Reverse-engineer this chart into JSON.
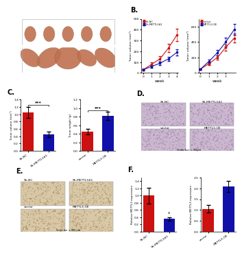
{
  "panel_B_left": {
    "x": [
      0,
      1,
      2,
      3,
      4
    ],
    "y_shNC": [
      30,
      80,
      130,
      230,
      350
    ],
    "y_shMETTL3": [
      30,
      60,
      90,
      130,
      190
    ],
    "errors_shNC": [
      8,
      15,
      25,
      40,
      55
    ],
    "errors_shMETTL3": [
      5,
      10,
      15,
      20,
      28
    ],
    "color_shNC": "#cc1111",
    "color_shMETTL3": "#1111aa",
    "label_shNC": "Sh-NC",
    "label_shMETTL3": "Sh-METTL3#1",
    "xlabel": "week",
    "ylabel": "Tumor volume (mm³)",
    "ylim": [
      0,
      500
    ]
  },
  "panel_B_right": {
    "x": [
      0,
      1,
      2,
      3,
      4
    ],
    "y_vector": [
      50,
      120,
      200,
      330,
      450
    ],
    "y_METTL3OE": [
      50,
      150,
      260,
      400,
      560
    ],
    "errors_vector": [
      8,
      18,
      28,
      40,
      55
    ],
    "errors_METTL3OE": [
      8,
      20,
      35,
      55,
      70
    ],
    "color_vector": "#cc1111",
    "color_METTL3OE": "#1111aa",
    "label_vector": "vector",
    "label_METTL3OE": "METTL3-OE",
    "xlabel": "week",
    "ylabel": "Tumor volume (mm³)",
    "ylim": [
      0,
      700
    ]
  },
  "panel_C_left": {
    "categories": [
      "Sh-NC",
      "Sh-METTL3#1"
    ],
    "values": [
      1.05,
      0.45
    ],
    "errors": [
      0.15,
      0.07
    ],
    "colors": [
      "#cc1111",
      "#1111aa"
    ],
    "ylabel": "Tumor volume (mm³)",
    "significance": "***",
    "ylim": [
      0,
      1.4
    ]
  },
  "panel_C_right": {
    "categories": [
      "vector",
      "METTL3-OE"
    ],
    "values": [
      0.45,
      0.82
    ],
    "errors": [
      0.06,
      0.09
    ],
    "colors": [
      "#cc1111",
      "#1111aa"
    ],
    "ylabel": "Tumor weight (g)",
    "significance": "***",
    "ylim": [
      0,
      1.2
    ]
  },
  "panel_D_labels_top": [
    "Sh-NC",
    "Sh-METTL3#1"
  ],
  "panel_D_labels_bottom": [
    "vector",
    "METTL3-OE"
  ],
  "panel_D_scale": "Scale bar = 40μm",
  "panel_E_labels_top_left": "Sh-NC",
  "panel_E_labels_top_right": "Sh-METTL3#1",
  "panel_E_labels_bottom_left": "vector",
  "panel_E_labels_bottom_right": "METTL3-OE",
  "panel_E_scale": "Scale bar = 400 μm",
  "panel_F_left": {
    "categories": [
      "Sh-NC",
      "Sh-METTL3#1"
    ],
    "values": [
      1.0,
      0.35
    ],
    "errors": [
      0.22,
      0.05
    ],
    "colors": [
      "#cc1111",
      "#1111aa"
    ],
    "ylabel": "Relative METTL3 expression",
    "significance": "*",
    "ylim": [
      0,
      1.5
    ]
  },
  "panel_F_right": {
    "categories": [
      "vector",
      "METTL3-OE"
    ],
    "values": [
      1.05,
      2.1
    ],
    "errors": [
      0.18,
      0.25
    ],
    "colors": [
      "#cc1111",
      "#1111aa"
    ],
    "ylabel": "Relative METTL3 expression",
    "significance": "",
    "ylim": [
      0,
      2.5
    ]
  },
  "bg_color": "#ffffff",
  "tumor_color_top": "#c07050",
  "tumor_color_bg": "#f5f0ee",
  "ihc_color": "#d4c4b0",
  "hist_color": "#d0c0d8"
}
